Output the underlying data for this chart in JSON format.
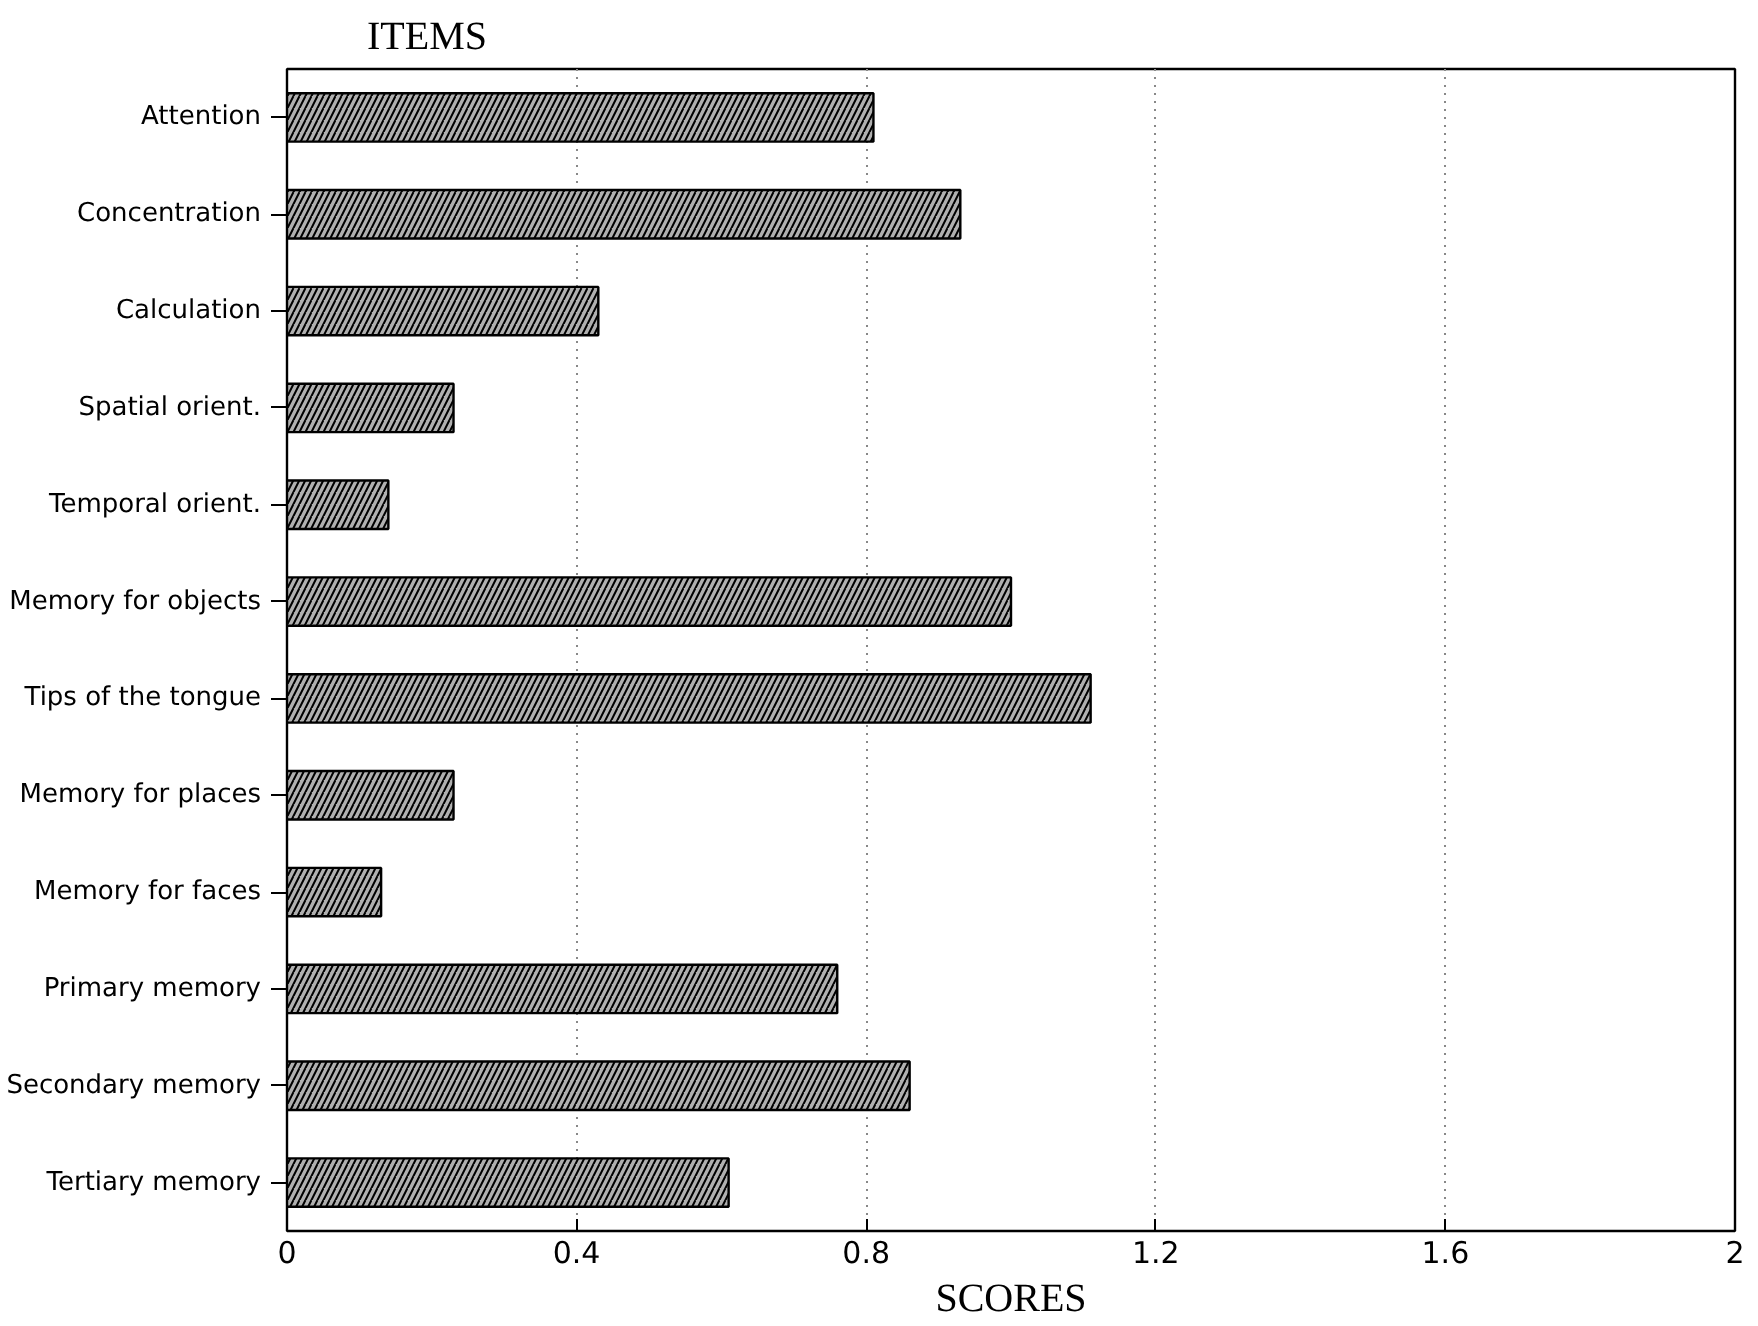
{
  "chart_data": {
    "type": "bar",
    "orientation": "horizontal",
    "ylabel": "ITEMS",
    "xlabel": "SCORES",
    "categories": [
      "Attention",
      "Concentration",
      "Calculation",
      "Spatial orient.",
      "Temporal orient.",
      "Memory for objects",
      "Tips of the tongue",
      "Memory for places",
      "Memory for faces",
      "Primary memory",
      "Secondary memory",
      "Tertiary memory"
    ],
    "values": [
      0.81,
      0.93,
      0.43,
      0.23,
      0.14,
      1.0,
      1.11,
      0.23,
      0.13,
      0.76,
      0.86,
      0.61
    ],
    "color": "#b0b0b0",
    "xlim": [
      0,
      2
    ],
    "xticks": [
      0,
      0.4,
      0.8,
      1.2,
      1.6,
      2
    ],
    "grid": "x"
  }
}
